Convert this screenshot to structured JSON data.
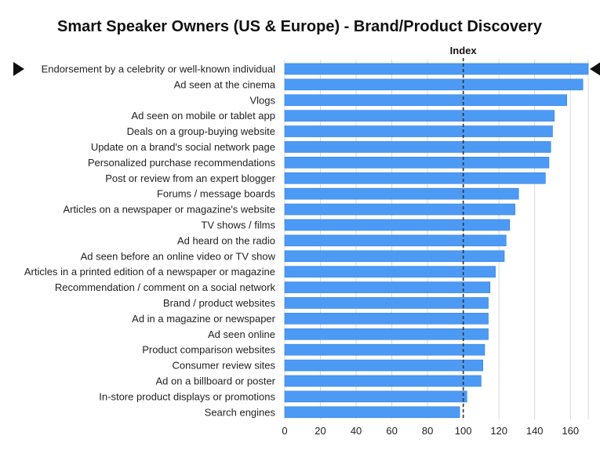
{
  "chart_data": {
    "type": "bar",
    "orientation": "horizontal",
    "title": "Smart Speaker Owners (US & Europe) - Brand/Product Discovery",
    "xlabel": "",
    "ylabel": "",
    "xlim": [
      0,
      170
    ],
    "x_ticks": [
      0,
      20,
      40,
      60,
      80,
      100,
      120,
      140,
      160
    ],
    "grid": "vertical",
    "bar_color": "#4d9af5",
    "bar_border_color": "#2f7de0",
    "reference_line": {
      "value": 100,
      "label": "Index",
      "style": "dashed"
    },
    "highlight_markers": {
      "category_index": 0,
      "shape": "triangle",
      "color": "#111111"
    },
    "categories": [
      "Endorsement by a celebrity or well-known individual",
      "Ad seen at the cinema",
      "Vlogs",
      "Ad seen on mobile or tablet app",
      "Deals on a group-buying website",
      "Update on a brand's social network page",
      "Personalized purchase recommendations",
      "Post or review from an expert blogger",
      "Forums / message boards",
      "Articles on a newspaper or magazine's website",
      "TV shows / films",
      "Ad heard on the radio",
      "Ad seen before an online video or TV show",
      "Articles in a printed edition of a newspaper or magazine",
      "Recommendation / comment on a social network",
      "Brand / product websites",
      "Ad in a magazine or newspaper",
      "Ad seen online",
      "Product comparison websites",
      "Consumer review sites",
      "Ad on a billboard or poster",
      "In-store product displays or promotions",
      "Search engines"
    ],
    "values": [
      170,
      167,
      158,
      151,
      150,
      149,
      148,
      146,
      131,
      129,
      126,
      124,
      123,
      118,
      115,
      114,
      114,
      114,
      112,
      111,
      110,
      102,
      98
    ]
  }
}
